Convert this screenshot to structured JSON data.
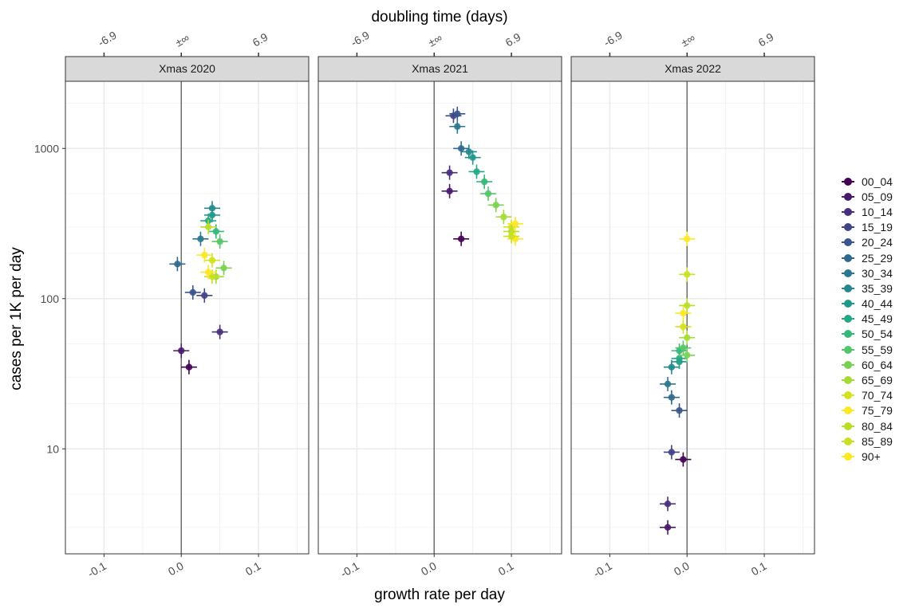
{
  "chart_data": {
    "type": "scatter",
    "x_top_label": "doubling time (days)",
    "xlabel": "growth rate per day",
    "ylabel": "cases per 1K per day",
    "y_scale": "log",
    "ylim": [
      2,
      2800
    ],
    "xlim": [
      -0.15,
      0.165
    ],
    "x_ticks": [
      "-0.1",
      "0.0",
      "0.1"
    ],
    "x_tick_values": [
      -0.1,
      0,
      0.1
    ],
    "x_top_ticks": [
      "-6.9",
      "±∞",
      "6.9"
    ],
    "x_top_tick_values": [
      -0.1,
      0,
      0.1
    ],
    "y_ticks": [
      "10",
      "100",
      "1000"
    ],
    "y_tick_values": [
      10,
      100,
      1000
    ],
    "grid": true,
    "legend_position": "right",
    "series": [
      {
        "name": "00_04",
        "color": "#440154"
      },
      {
        "name": "05_09",
        "color": "#481a6c"
      },
      {
        "name": "10_14",
        "color": "#472f7d"
      },
      {
        "name": "15_19",
        "color": "#414487"
      },
      {
        "name": "20_24",
        "color": "#39568c"
      },
      {
        "name": "25_29",
        "color": "#31688e"
      },
      {
        "name": "30_34",
        "color": "#2a788e"
      },
      {
        "name": "35_39",
        "color": "#23888e"
      },
      {
        "name": "40_44",
        "color": "#1f988b"
      },
      {
        "name": "45_49",
        "color": "#22a884"
      },
      {
        "name": "50_54",
        "color": "#35b779"
      },
      {
        "name": "55_59",
        "color": "#54c568"
      },
      {
        "name": "60_64",
        "color": "#7ad151"
      },
      {
        "name": "65_69",
        "color": "#a5db36"
      },
      {
        "name": "70_74",
        "color": "#d2e21b"
      },
      {
        "name": "75_79",
        "color": "#fde725"
      },
      {
        "name": "80_84",
        "color": "#b9de28"
      },
      {
        "name": "85_89",
        "color": "#c9e020"
      },
      {
        "name": "90+",
        "color": "#fde725"
      }
    ],
    "panels": [
      {
        "title": "Xmas 2020",
        "points": [
          {
            "s": 0,
            "x": 0.01,
            "y": 35
          },
          {
            "s": 1,
            "x": 0.0,
            "y": 45
          },
          {
            "s": 2,
            "x": 0.05,
            "y": 60
          },
          {
            "s": 3,
            "x": 0.03,
            "y": 105
          },
          {
            "s": 4,
            "x": 0.015,
            "y": 110
          },
          {
            "s": 5,
            "x": -0.005,
            "y": 170
          },
          {
            "s": 6,
            "x": 0.025,
            "y": 250
          },
          {
            "s": 7,
            "x": 0.04,
            "y": 400
          },
          {
            "s": 8,
            "x": 0.04,
            "y": 360
          },
          {
            "s": 9,
            "x": 0.035,
            "y": 330
          },
          {
            "s": 10,
            "x": 0.045,
            "y": 280
          },
          {
            "s": 11,
            "x": 0.05,
            "y": 240
          },
          {
            "s": 12,
            "x": 0.055,
            "y": 160
          },
          {
            "s": 13,
            "x": 0.045,
            "y": 140
          },
          {
            "s": 14,
            "x": 0.04,
            "y": 180
          },
          {
            "s": 15,
            "x": 0.03,
            "y": 195
          },
          {
            "s": 16,
            "x": 0.035,
            "y": 300
          },
          {
            "s": 17,
            "x": 0.04,
            "y": 140
          },
          {
            "s": 18,
            "x": 0.035,
            "y": 150
          }
        ]
      },
      {
        "title": "Xmas 2021",
        "points": [
          {
            "s": 0,
            "x": 0.035,
            "y": 250
          },
          {
            "s": 1,
            "x": 0.02,
            "y": 520
          },
          {
            "s": 2,
            "x": 0.02,
            "y": 690
          },
          {
            "s": 3,
            "x": 0.025,
            "y": 1650
          },
          {
            "s": 4,
            "x": 0.03,
            "y": 1700
          },
          {
            "s": 5,
            "x": 0.035,
            "y": 1000
          },
          {
            "s": 6,
            "x": 0.03,
            "y": 1400
          },
          {
            "s": 7,
            "x": 0.045,
            "y": 950
          },
          {
            "s": 8,
            "x": 0.05,
            "y": 870
          },
          {
            "s": 9,
            "x": 0.055,
            "y": 700
          },
          {
            "s": 10,
            "x": 0.065,
            "y": 600
          },
          {
            "s": 11,
            "x": 0.07,
            "y": 500
          },
          {
            "s": 12,
            "x": 0.08,
            "y": 420
          },
          {
            "s": 13,
            "x": 0.09,
            "y": 350
          },
          {
            "s": 14,
            "x": 0.1,
            "y": 300
          },
          {
            "s": 15,
            "x": 0.105,
            "y": 250
          },
          {
            "s": 16,
            "x": 0.1,
            "y": 280
          },
          {
            "s": 17,
            "x": 0.1,
            "y": 260
          },
          {
            "s": 18,
            "x": 0.105,
            "y": 315
          }
        ]
      },
      {
        "title": "Xmas 2022",
        "points": [
          {
            "s": 0,
            "x": -0.005,
            "y": 8.5
          },
          {
            "s": 1,
            "x": -0.025,
            "y": 3
          },
          {
            "s": 2,
            "x": -0.025,
            "y": 4.3
          },
          {
            "s": 3,
            "x": -0.02,
            "y": 9.5
          },
          {
            "s": 4,
            "x": -0.01,
            "y": 18
          },
          {
            "s": 5,
            "x": -0.02,
            "y": 22
          },
          {
            "s": 6,
            "x": -0.025,
            "y": 27
          },
          {
            "s": 7,
            "x": -0.02,
            "y": 35
          },
          {
            "s": 8,
            "x": -0.01,
            "y": 38
          },
          {
            "s": 9,
            "x": -0.01,
            "y": 40
          },
          {
            "s": 10,
            "x": -0.01,
            "y": 45
          },
          {
            "s": 11,
            "x": -0.005,
            "y": 47
          },
          {
            "s": 12,
            "x": 0.0,
            "y": 42
          },
          {
            "s": 13,
            "x": 0.0,
            "y": 55
          },
          {
            "s": 14,
            "x": -0.005,
            "y": 65
          },
          {
            "s": 15,
            "x": -0.005,
            "y": 80
          },
          {
            "s": 16,
            "x": 0.0,
            "y": 90
          },
          {
            "s": 17,
            "x": 0.0,
            "y": 145
          },
          {
            "s": 18,
            "x": 0.0,
            "y": 250
          }
        ]
      }
    ]
  }
}
